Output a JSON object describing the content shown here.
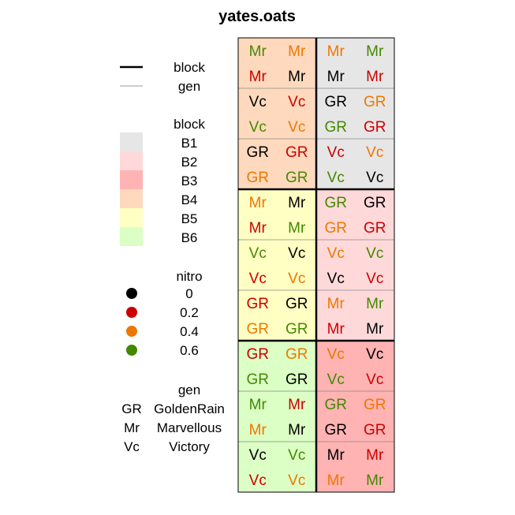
{
  "chart_data": {
    "type": "heatmap",
    "title": "yates.oats",
    "line_legend": [
      {
        "label": "block",
        "weight": "thick"
      },
      {
        "label": "gen",
        "weight": "thin"
      }
    ],
    "block_legend": {
      "title": "block",
      "items": [
        {
          "label": "B1",
          "color": "#e6e6e6"
        },
        {
          "label": "B2",
          "color": "#ffd9d9"
        },
        {
          "label": "B3",
          "color": "#ffb3b3"
        },
        {
          "label": "B4",
          "color": "#ffd9bd"
        },
        {
          "label": "B5",
          "color": "#ffffc4"
        },
        {
          "label": "B6",
          "color": "#dbffc4"
        }
      ]
    },
    "nitro_legend": {
      "title": "nitro",
      "items": [
        {
          "label": "0",
          "color": "#000000"
        },
        {
          "label": "0.2",
          "color": "#cc0000"
        },
        {
          "label": "0.4",
          "color": "#ee7700"
        },
        {
          "label": "0.6",
          "color": "#448800"
        }
      ]
    },
    "gen_legend": {
      "title": "gen",
      "items": [
        {
          "code": "GR",
          "name": "GoldenRain"
        },
        {
          "code": "Mr",
          "name": "Marvellous"
        },
        {
          "code": "Vc",
          "name": "Victory"
        }
      ]
    },
    "nitro_colors": {
      "0": "#000000",
      "0.2": "#cc0000",
      "0.4": "#ee7700",
      "0.6": "#448800"
    },
    "block_colors": {
      "B1": "#e6e6e6",
      "B2": "#ffd9d9",
      "B3": "#ffb3b3",
      "B4": "#ffd9bd",
      "B5": "#ffffc4",
      "B6": "#dbffc4"
    },
    "grid": {
      "rows": 18,
      "cols": 4
    },
    "block_layout": [
      {
        "block": "B4",
        "rows": [
          0,
          5
        ],
        "cols": [
          0,
          1
        ]
      },
      {
        "block": "B1",
        "rows": [
          0,
          5
        ],
        "cols": [
          2,
          3
        ]
      },
      {
        "block": "B5",
        "rows": [
          6,
          11
        ],
        "cols": [
          0,
          1
        ]
      },
      {
        "block": "B2",
        "rows": [
          6,
          11
        ],
        "cols": [
          2,
          3
        ]
      },
      {
        "block": "B6",
        "rows": [
          12,
          17
        ],
        "cols": [
          0,
          1
        ]
      },
      {
        "block": "B3",
        "rows": [
          12,
          17
        ],
        "cols": [
          2,
          3
        ]
      }
    ],
    "cells": [
      [
        {
          "gen": "Mr",
          "nitro": "0.6"
        },
        {
          "gen": "Mr",
          "nitro": "0.4"
        },
        {
          "gen": "Mr",
          "nitro": "0.4"
        },
        {
          "gen": "Mr",
          "nitro": "0.6"
        }
      ],
      [
        {
          "gen": "Mr",
          "nitro": "0.2"
        },
        {
          "gen": "Mr",
          "nitro": "0"
        },
        {
          "gen": "Mr",
          "nitro": "0"
        },
        {
          "gen": "Mr",
          "nitro": "0.2"
        }
      ],
      [
        {
          "gen": "Vc",
          "nitro": "0"
        },
        {
          "gen": "Vc",
          "nitro": "0.2"
        },
        {
          "gen": "GR",
          "nitro": "0"
        },
        {
          "gen": "GR",
          "nitro": "0.4"
        }
      ],
      [
        {
          "gen": "Vc",
          "nitro": "0.6"
        },
        {
          "gen": "Vc",
          "nitro": "0.4"
        },
        {
          "gen": "GR",
          "nitro": "0.6"
        },
        {
          "gen": "GR",
          "nitro": "0.2"
        }
      ],
      [
        {
          "gen": "GR",
          "nitro": "0"
        },
        {
          "gen": "GR",
          "nitro": "0.2"
        },
        {
          "gen": "Vc",
          "nitro": "0.2"
        },
        {
          "gen": "Vc",
          "nitro": "0.4"
        }
      ],
      [
        {
          "gen": "GR",
          "nitro": "0.4"
        },
        {
          "gen": "GR",
          "nitro": "0.6"
        },
        {
          "gen": "Vc",
          "nitro": "0.6"
        },
        {
          "gen": "Vc",
          "nitro": "0"
        }
      ],
      [
        {
          "gen": "Mr",
          "nitro": "0.4"
        },
        {
          "gen": "Mr",
          "nitro": "0"
        },
        {
          "gen": "GR",
          "nitro": "0.6"
        },
        {
          "gen": "GR",
          "nitro": "0"
        }
      ],
      [
        {
          "gen": "Mr",
          "nitro": "0.2"
        },
        {
          "gen": "Mr",
          "nitro": "0.6"
        },
        {
          "gen": "GR",
          "nitro": "0.4"
        },
        {
          "gen": "GR",
          "nitro": "0.2"
        }
      ],
      [
        {
          "gen": "Vc",
          "nitro": "0.6"
        },
        {
          "gen": "Vc",
          "nitro": "0"
        },
        {
          "gen": "Vc",
          "nitro": "0.4"
        },
        {
          "gen": "Vc",
          "nitro": "0.6"
        }
      ],
      [
        {
          "gen": "Vc",
          "nitro": "0.2"
        },
        {
          "gen": "Vc",
          "nitro": "0.4"
        },
        {
          "gen": "Vc",
          "nitro": "0"
        },
        {
          "gen": "Vc",
          "nitro": "0.2"
        }
      ],
      [
        {
          "gen": "GR",
          "nitro": "0.2"
        },
        {
          "gen": "GR",
          "nitro": "0"
        },
        {
          "gen": "Mr",
          "nitro": "0.4"
        },
        {
          "gen": "Mr",
          "nitro": "0.6"
        }
      ],
      [
        {
          "gen": "GR",
          "nitro": "0.4"
        },
        {
          "gen": "GR",
          "nitro": "0.6"
        },
        {
          "gen": "Mr",
          "nitro": "0.2"
        },
        {
          "gen": "Mr",
          "nitro": "0"
        }
      ],
      [
        {
          "gen": "GR",
          "nitro": "0.2"
        },
        {
          "gen": "GR",
          "nitro": "0.4"
        },
        {
          "gen": "Vc",
          "nitro": "0.4"
        },
        {
          "gen": "Vc",
          "nitro": "0"
        }
      ],
      [
        {
          "gen": "GR",
          "nitro": "0.6"
        },
        {
          "gen": "GR",
          "nitro": "0"
        },
        {
          "gen": "Vc",
          "nitro": "0.6"
        },
        {
          "gen": "Vc",
          "nitro": "0.2"
        }
      ],
      [
        {
          "gen": "Mr",
          "nitro": "0.6"
        },
        {
          "gen": "Mr",
          "nitro": "0.2"
        },
        {
          "gen": "GR",
          "nitro": "0.6"
        },
        {
          "gen": "GR",
          "nitro": "0.4"
        }
      ],
      [
        {
          "gen": "Mr",
          "nitro": "0.4"
        },
        {
          "gen": "Mr",
          "nitro": "0"
        },
        {
          "gen": "GR",
          "nitro": "0"
        },
        {
          "gen": "GR",
          "nitro": "0.2"
        }
      ],
      [
        {
          "gen": "Vc",
          "nitro": "0"
        },
        {
          "gen": "Vc",
          "nitro": "0.6"
        },
        {
          "gen": "Mr",
          "nitro": "0"
        },
        {
          "gen": "Mr",
          "nitro": "0.2"
        }
      ],
      [
        {
          "gen": "Vc",
          "nitro": "0.2"
        },
        {
          "gen": "Vc",
          "nitro": "0.4"
        },
        {
          "gen": "Mr",
          "nitro": "0.4"
        },
        {
          "gen": "Mr",
          "nitro": "0.6"
        }
      ]
    ]
  }
}
